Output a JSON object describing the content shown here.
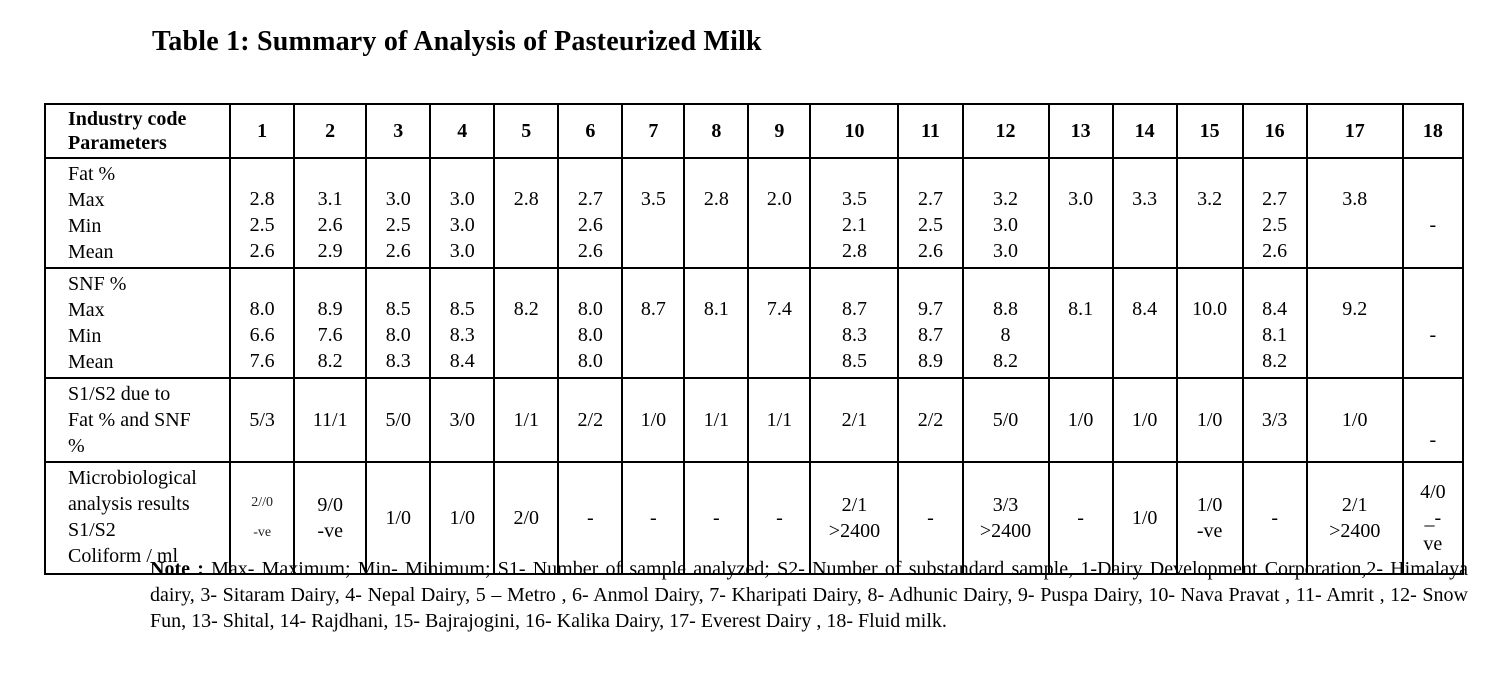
{
  "title": "Table 1: Summary of Analysis of Pasteurized Milk",
  "table": {
    "header": {
      "label_lines": [
        "Industry code",
        "Parameters"
      ],
      "codes": [
        "1",
        "2",
        "3",
        "4",
        "5",
        "6",
        "7",
        "8",
        "9",
        "10",
        "11",
        "12",
        "13",
        "14",
        "15",
        "16",
        "17",
        "18"
      ]
    },
    "rows": [
      {
        "id": "fat",
        "label_lines": [
          "Fat %",
          "Max",
          "Min",
          "Mean"
        ],
        "cells": [
          {
            "lines": [
              "2.8",
              "2.5",
              "2.6"
            ]
          },
          {
            "lines": [
              "3.1",
              "2.6",
              "2.9"
            ]
          },
          {
            "lines": [
              "3.0",
              "2.5",
              "2.6"
            ]
          },
          {
            "lines": [
              "3.0",
              "3.0",
              "3.0"
            ]
          },
          {
            "lines": [
              "2.8"
            ]
          },
          {
            "lines": [
              "2.7",
              "2.6",
              "2.6"
            ]
          },
          {
            "lines": [
              "3.5"
            ]
          },
          {
            "lines": [
              "2.8"
            ]
          },
          {
            "lines": [
              "2.0"
            ]
          },
          {
            "lines": [
              "3.5",
              "2.1",
              "2.8"
            ]
          },
          {
            "lines": [
              "2.7",
              "2.5",
              "2.6"
            ]
          },
          {
            "lines": [
              "3.2",
              "3.0",
              "3.0"
            ]
          },
          {
            "lines": [
              "3.0"
            ]
          },
          {
            "lines": [
              "3.3"
            ]
          },
          {
            "lines": [
              "3.2"
            ]
          },
          {
            "lines": [
              "2.7",
              "2.5",
              "2.6"
            ]
          },
          {
            "lines": [
              "3.8"
            ]
          },
          {
            "lines": [
              "",
              "-"
            ]
          }
        ]
      },
      {
        "id": "snf",
        "label_lines": [
          "SNF %",
          "Max",
          "Min",
          "Mean"
        ],
        "cells": [
          {
            "lines": [
              "8.0",
              "6.6",
              "7.6"
            ]
          },
          {
            "lines": [
              "8.9",
              "7.6",
              "8.2"
            ]
          },
          {
            "lines": [
              "8.5",
              "8.0",
              "8.3"
            ]
          },
          {
            "lines": [
              "8.5",
              "8.3",
              "8.4"
            ]
          },
          {
            "lines": [
              "8.2"
            ]
          },
          {
            "lines": [
              "8.0",
              "8.0",
              "8.0"
            ]
          },
          {
            "lines": [
              "8.7"
            ]
          },
          {
            "lines": [
              "8.1"
            ]
          },
          {
            "lines": [
              "7.4"
            ]
          },
          {
            "lines": [
              "8.7",
              "8.3",
              "8.5"
            ]
          },
          {
            "lines": [
              "9.7",
              "8.7",
              "8.9"
            ]
          },
          {
            "lines": [
              "8.8",
              "8",
              "8.2"
            ]
          },
          {
            "lines": [
              "8.1"
            ]
          },
          {
            "lines": [
              "8.4"
            ]
          },
          {
            "lines": [
              "10.0"
            ]
          },
          {
            "lines": [
              "8.4",
              "8.1",
              "8.2"
            ]
          },
          {
            "lines": [
              "9.2"
            ]
          },
          {
            "lines": [
              "",
              "-"
            ]
          }
        ]
      },
      {
        "id": "s1s2",
        "label_lines": [
          "S1/S2 due to",
          "Fat %  and SNF",
          "%"
        ],
        "cells": [
          {
            "lines": [
              "5/3"
            ]
          },
          {
            "lines": [
              "11/1"
            ]
          },
          {
            "lines": [
              "5/0"
            ]
          },
          {
            "lines": [
              "3/0"
            ]
          },
          {
            "lines": [
              "1/1"
            ]
          },
          {
            "lines": [
              "2/2"
            ]
          },
          {
            "lines": [
              "1/0"
            ]
          },
          {
            "lines": [
              "1/1"
            ]
          },
          {
            "lines": [
              "1/1"
            ]
          },
          {
            "lines": [
              "2/1"
            ]
          },
          {
            "lines": [
              "2/2"
            ]
          },
          {
            "lines": [
              "5/0"
            ]
          },
          {
            "lines": [
              "1/0"
            ]
          },
          {
            "lines": [
              "1/0"
            ]
          },
          {
            "lines": [
              "1/0"
            ]
          },
          {
            "lines": [
              "3/3"
            ]
          },
          {
            "lines": [
              "1/0"
            ]
          },
          {
            "lines": [
              "-"
            ],
            "align": "bottom"
          }
        ]
      },
      {
        "id": "micro",
        "label_lines": [
          "Microbiological",
          "analysis results",
          "S1/S2",
          "Coliform / ml"
        ],
        "cells": [
          {
            "lines": [
              "2//0",
              "-ve"
            ],
            "small": true
          },
          {
            "lines": [
              "9/0",
              "-ve"
            ]
          },
          {
            "lines": [
              "1/0"
            ]
          },
          {
            "lines": [
              "1/0"
            ]
          },
          {
            "lines": [
              "2/0"
            ]
          },
          {
            "lines": [
              "-"
            ]
          },
          {
            "lines": [
              "-"
            ]
          },
          {
            "lines": [
              "-"
            ]
          },
          {
            "lines": [
              "-"
            ]
          },
          {
            "lines": [
              "2/1",
              ">2400"
            ]
          },
          {
            "lines": [
              "-"
            ]
          },
          {
            "lines": [
              "3/3",
              ">2400"
            ]
          },
          {
            "lines": [
              "-"
            ]
          },
          {
            "lines": [
              "1/0"
            ]
          },
          {
            "lines": [
              "1/0",
              "-ve"
            ]
          },
          {
            "lines": [
              "-"
            ]
          },
          {
            "lines": [
              "2/1",
              ">2400"
            ]
          },
          {
            "lines": [
              "4/0",
              "_-",
              "ve"
            ]
          }
        ]
      }
    ]
  },
  "note": {
    "label": "Note :",
    "text": " Max- Maximum; Min- Minimum; S1- Number of sample analyzed; S2- Number of substandard sample, 1-Dairy Development Corporation,2- Himalaya dairy, 3- Sitaram Dairy,  4- Nepal Dairy, 5 – Metro , 6- Anmol Dairy, 7- Kharipati Dairy, 8- Adhunic Dairy, 9- Puspa Dairy, 10- Nava Pravat , 11- Amrit , 12- Snow Fun, 13- Shital, 14- Rajdhani, 15- Bajrajogini, 16- Kalika Dairy, 17- Everest Dairy , 18- Fluid milk."
  }
}
